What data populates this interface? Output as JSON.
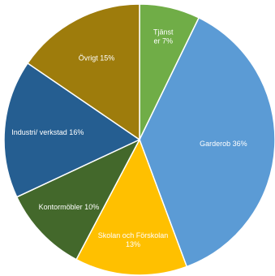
{
  "chart_data": {
    "type": "pie",
    "start_angle_deg": 0,
    "direction": "clockwise",
    "slices": [
      {
        "label_lines": [
          "Tjänst",
          "er 7%"
        ],
        "value": 7,
        "color": "#70ad47"
      },
      {
        "label_lines": [
          "Garderob 36%"
        ],
        "value": 36,
        "color": "#5b9bd5"
      },
      {
        "label_lines": [
          "Skolan och Förskolan",
          "13%"
        ],
        "value": 13,
        "color": "#ffc000"
      },
      {
        "label_lines": [
          "Kontormöbler 10%"
        ],
        "value": 10,
        "color": "#43682b"
      },
      {
        "label_lines": [
          "Industri/ verkstad 16%"
        ],
        "value": 16,
        "color": "#255e91"
      },
      {
        "label_lines": [
          "Övrigt 15%"
        ],
        "value": 15,
        "color": "#9e7c0c"
      }
    ]
  }
}
